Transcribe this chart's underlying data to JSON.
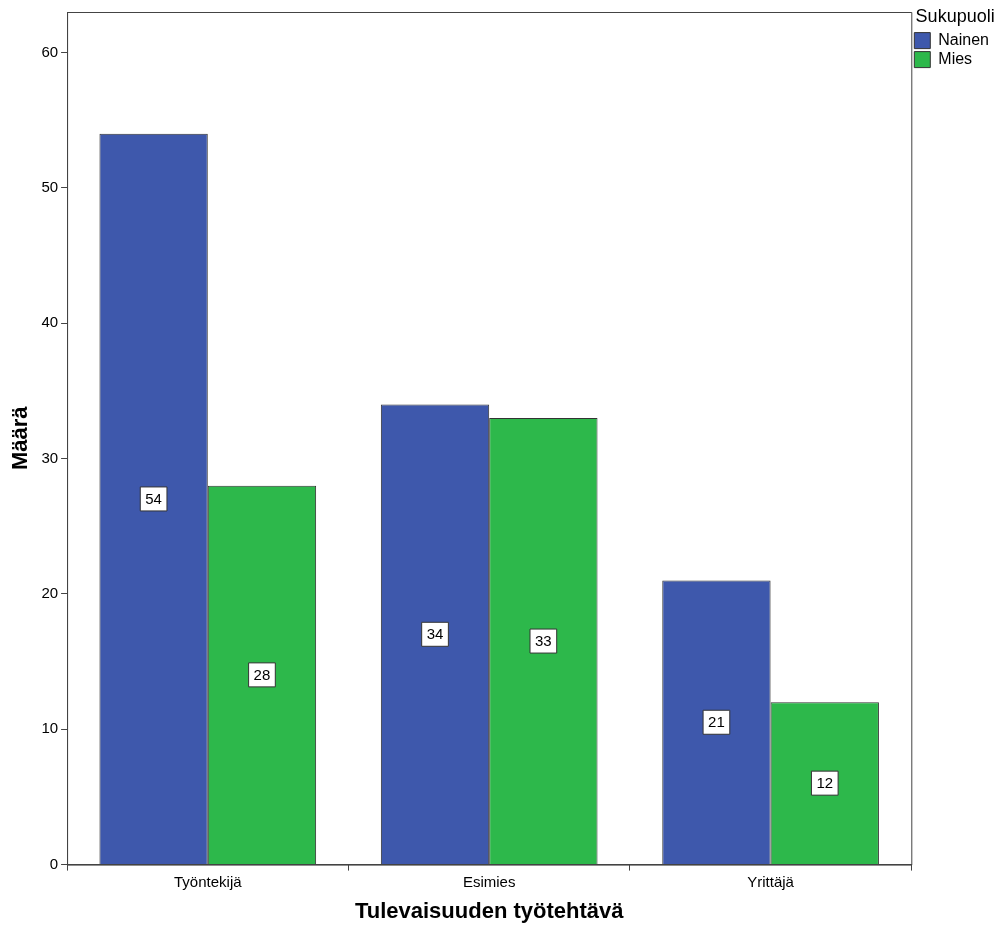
{
  "chart_data": {
    "type": "bar",
    "xlabel": "Tulevaisuuden työtehtävä",
    "ylabel": "Määrä",
    "legend_title": "Sukupuoli",
    "categories": [
      "Työntekijä",
      "Esimies",
      "Yrittäjä"
    ],
    "series": [
      {
        "name": "Nainen",
        "color": "#3e58ac",
        "values": [
          54,
          34,
          21
        ]
      },
      {
        "name": "Mies",
        "color": "#2db84b",
        "values": [
          28,
          33,
          12
        ]
      }
    ],
    "ylim": [
      0,
      63
    ],
    "yticks": [
      0,
      10,
      20,
      30,
      40,
      50,
      60
    ],
    "grid": false,
    "legend": "top right",
    "data_labels": true
  }
}
